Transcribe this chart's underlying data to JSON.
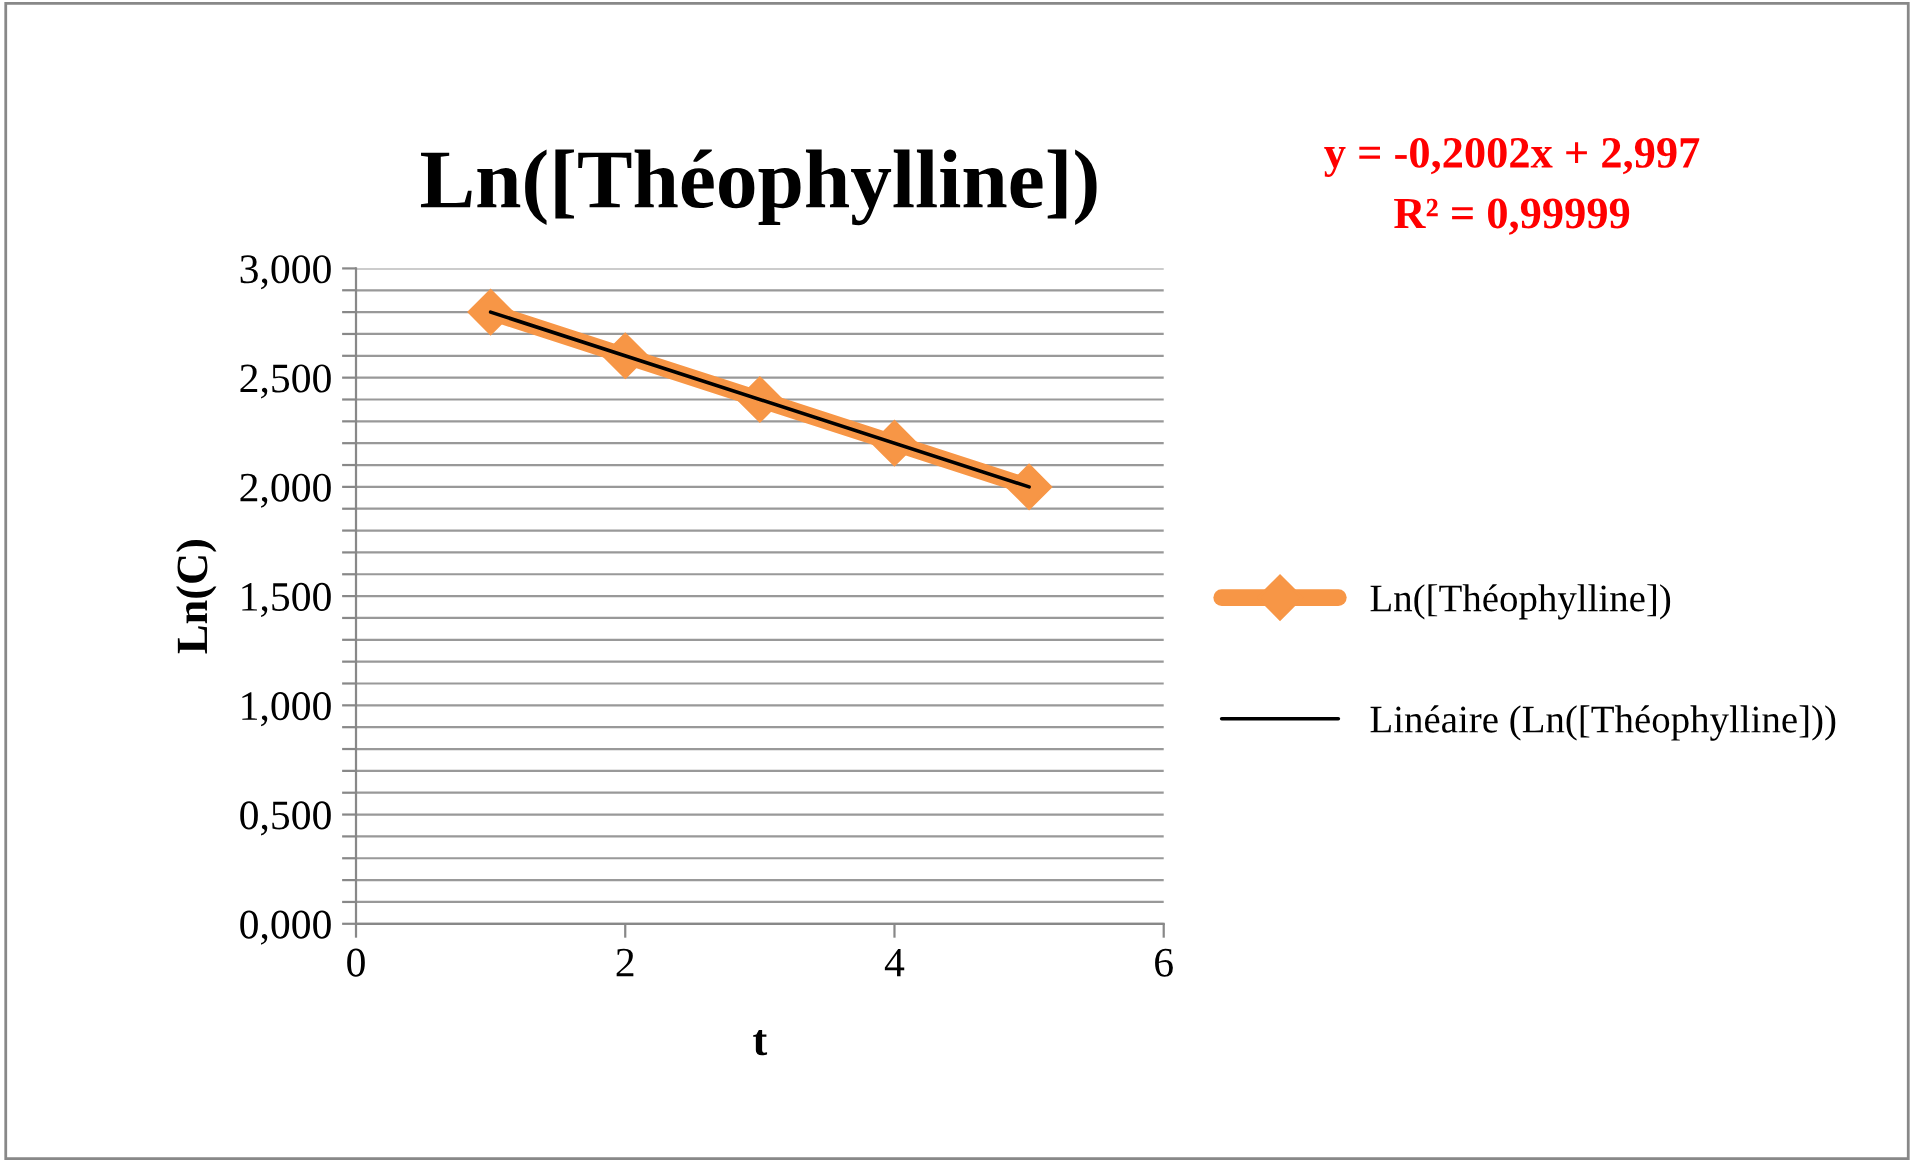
{
  "chart_data": {
    "type": "line",
    "title": "Ln([Théophylline])",
    "xlabel": "t",
    "ylabel": "Ln(C)",
    "x": [
      1,
      2,
      3,
      4,
      5
    ],
    "series": [
      {
        "name": "Ln([Théophylline])",
        "color": "#f79646",
        "values": [
          2.8,
          2.6,
          2.4,
          2.2,
          2.0
        ],
        "marker": "diamond"
      },
      {
        "name": "Linéaire (Ln([Théophylline]))",
        "color": "#000000",
        "x": [
          1,
          5
        ],
        "values": [
          2.8,
          2.0
        ],
        "marker": "none"
      }
    ],
    "xlim": [
      0,
      6
    ],
    "xticks": [
      0,
      2,
      4,
      6
    ],
    "ylim": [
      0,
      3
    ],
    "yticks": [
      {
        "value": 0,
        "label": "0,000"
      },
      {
        "value": 0.1,
        "label": null
      },
      {
        "value": 0.2,
        "label": null
      },
      {
        "value": 0.3,
        "label": null
      },
      {
        "value": 0.4,
        "label": null
      },
      {
        "value": 0.5,
        "label": "0,500"
      },
      {
        "value": 0.6,
        "label": null
      },
      {
        "value": 0.7,
        "label": null
      },
      {
        "value": 0.8,
        "label": null
      },
      {
        "value": 0.9,
        "label": null
      },
      {
        "value": 1.0,
        "label": "1,000"
      },
      {
        "value": 1.1,
        "label": null
      },
      {
        "value": 1.2,
        "label": null
      },
      {
        "value": 1.3,
        "label": null
      },
      {
        "value": 1.4,
        "label": null
      },
      {
        "value": 1.5,
        "label": "1,500"
      },
      {
        "value": 1.6,
        "label": null
      },
      {
        "value": 1.7,
        "label": null
      },
      {
        "value": 1.8,
        "label": null
      },
      {
        "value": 1.9,
        "label": null
      },
      {
        "value": 2.0,
        "label": "2,000"
      },
      {
        "value": 2.1,
        "label": null
      },
      {
        "value": 2.2,
        "label": null
      },
      {
        "value": 2.3,
        "label": null
      },
      {
        "value": 2.4,
        "label": null
      },
      {
        "value": 2.5,
        "label": "2,500"
      },
      {
        "value": 2.6,
        "label": null
      },
      {
        "value": 2.7,
        "label": null
      },
      {
        "value": 2.8,
        "label": null
      },
      {
        "value": 2.9,
        "label": null
      },
      {
        "value": 3.0,
        "label": "3,000"
      }
    ],
    "grid": "y",
    "legend": "right",
    "annotations": [
      "y = -0,2002x + 2,997",
      "R² = 0,99999"
    ]
  }
}
